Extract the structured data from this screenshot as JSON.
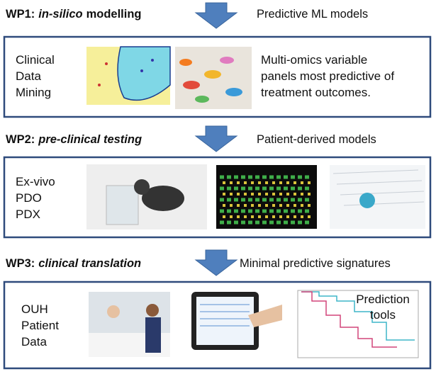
{
  "sections": [
    {
      "heading": {
        "label": "WP1:",
        "emphasis": "in-silico",
        "rest": "modelling"
      },
      "output": "Predictive ML models",
      "left_text": [
        "Clinical",
        "Data",
        "Mining"
      ],
      "right_text": [
        "Multi-omics variable",
        "panels most predictive of",
        "treatment outcomes."
      ]
    },
    {
      "heading": {
        "label": "WP2:",
        "emphasis": "pre-clinical testing"
      },
      "output": "Patient-derived models",
      "left_text": [
        "Ex-vivo",
        "PDO",
        "PDX"
      ]
    },
    {
      "heading": {
        "label": "WP3:",
        "emphasis": "clinical translation"
      },
      "output": "Minimal predictive signatures",
      "left_text": [
        "OUH",
        "Patient",
        "Data"
      ],
      "right_text": [
        "Prediction",
        "tools"
      ]
    }
  ]
}
